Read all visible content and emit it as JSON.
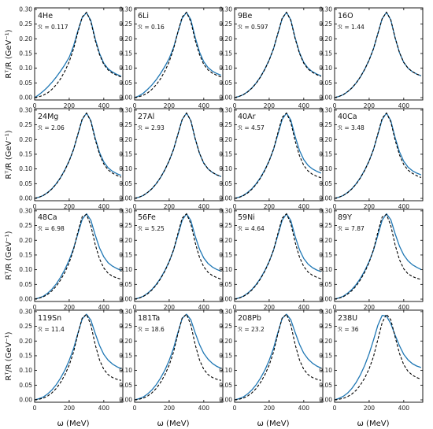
{
  "figure": {
    "xlabel": "ω (MeV)",
    "ylabel": "Rᵀ/R (GeV⁻¹)"
  },
  "chart_data": {
    "type": "line",
    "layout": "4x4 panels",
    "xlim": [
      0,
      510
    ],
    "ylim": [
      -0.008,
      0.305
    ],
    "xticks": [
      "0",
      "200",
      "400"
    ],
    "yticks": [
      "0.00",
      "0.05",
      "0.10",
      "0.15",
      "0.20",
      "0.25",
      "0.30"
    ],
    "xticks_values": [
      0,
      200,
      400
    ],
    "yticks_values": [
      0,
      0.05,
      0.1,
      0.15,
      0.2,
      0.25,
      0.3
    ],
    "colors": {
      "solid": "#1f77b4",
      "dashed": "#000000"
    },
    "x": [
      0,
      25,
      50,
      75,
      100,
      125,
      150,
      175,
      200,
      225,
      250,
      275,
      300,
      325,
      350,
      375,
      400,
      425,
      450,
      475,
      500
    ],
    "panels": [
      {
        "nucleus": "4He",
        "r_label": "ℛ = 0.117",
        "solid": [
          0.0,
          0.01,
          0.022,
          0.036,
          0.052,
          0.07,
          0.09,
          0.112,
          0.137,
          0.175,
          0.227,
          0.272,
          0.289,
          0.262,
          0.2,
          0.15,
          0.117,
          0.098,
          0.087,
          0.079,
          0.073
        ],
        "dashed": [
          0.0,
          0.003,
          0.008,
          0.016,
          0.028,
          0.044,
          0.064,
          0.09,
          0.122,
          0.165,
          0.222,
          0.274,
          0.29,
          0.258,
          0.195,
          0.146,
          0.113,
          0.094,
          0.083,
          0.076,
          0.07
        ]
      },
      {
        "nucleus": "6Li",
        "r_label": "ℛ = 0.16",
        "solid": [
          0.0,
          0.006,
          0.015,
          0.028,
          0.043,
          0.061,
          0.082,
          0.106,
          0.133,
          0.17,
          0.222,
          0.27,
          0.29,
          0.265,
          0.205,
          0.155,
          0.122,
          0.102,
          0.09,
          0.082,
          0.076
        ],
        "dashed": [
          0.0,
          0.003,
          0.008,
          0.016,
          0.028,
          0.044,
          0.064,
          0.09,
          0.122,
          0.165,
          0.222,
          0.274,
          0.29,
          0.258,
          0.195,
          0.146,
          0.113,
          0.094,
          0.083,
          0.076,
          0.07
        ]
      },
      {
        "nucleus": "9Be",
        "r_label": "ℛ = 0.597",
        "solid": [
          0.0,
          0.004,
          0.01,
          0.02,
          0.033,
          0.05,
          0.071,
          0.097,
          0.128,
          0.166,
          0.217,
          0.268,
          0.29,
          0.264,
          0.203,
          0.153,
          0.12,
          0.1,
          0.088,
          0.08,
          0.074
        ],
        "dashed": [
          0.0,
          0.004,
          0.01,
          0.019,
          0.032,
          0.049,
          0.07,
          0.096,
          0.127,
          0.166,
          0.218,
          0.27,
          0.29,
          0.262,
          0.2,
          0.15,
          0.117,
          0.097,
          0.086,
          0.078,
          0.072
        ]
      },
      {
        "nucleus": "16O",
        "r_label": "ℛ = 1.44",
        "solid": [
          0.0,
          0.004,
          0.01,
          0.02,
          0.033,
          0.05,
          0.071,
          0.097,
          0.128,
          0.166,
          0.217,
          0.268,
          0.29,
          0.264,
          0.203,
          0.153,
          0.12,
          0.1,
          0.088,
          0.08,
          0.074
        ],
        "dashed": [
          0.0,
          0.004,
          0.01,
          0.02,
          0.033,
          0.05,
          0.071,
          0.097,
          0.128,
          0.166,
          0.217,
          0.268,
          0.29,
          0.264,
          0.203,
          0.153,
          0.12,
          0.1,
          0.088,
          0.08,
          0.074
        ]
      },
      {
        "nucleus": "24Mg",
        "r_label": "ℛ = 2.06",
        "solid": [
          0.0,
          0.004,
          0.01,
          0.02,
          0.033,
          0.05,
          0.071,
          0.097,
          0.128,
          0.166,
          0.217,
          0.268,
          0.29,
          0.264,
          0.205,
          0.156,
          0.124,
          0.104,
          0.092,
          0.084,
          0.078
        ],
        "dashed": [
          0.0,
          0.004,
          0.01,
          0.019,
          0.032,
          0.049,
          0.07,
          0.096,
          0.127,
          0.166,
          0.218,
          0.27,
          0.29,
          0.262,
          0.2,
          0.15,
          0.117,
          0.097,
          0.086,
          0.078,
          0.072
        ]
      },
      {
        "nucleus": "27Al",
        "r_label": "ℛ = 2.93",
        "solid": [
          0.0,
          0.004,
          0.01,
          0.02,
          0.033,
          0.05,
          0.071,
          0.097,
          0.128,
          0.166,
          0.217,
          0.268,
          0.29,
          0.264,
          0.203,
          0.153,
          0.12,
          0.1,
          0.088,
          0.08,
          0.074
        ],
        "dashed": [
          0.0,
          0.004,
          0.01,
          0.02,
          0.033,
          0.05,
          0.071,
          0.097,
          0.128,
          0.166,
          0.217,
          0.268,
          0.29,
          0.264,
          0.203,
          0.153,
          0.12,
          0.1,
          0.088,
          0.08,
          0.074
        ]
      },
      {
        "nucleus": "40Ar",
        "r_label": "ℛ = 4.57",
        "solid": [
          0.0,
          0.004,
          0.01,
          0.02,
          0.033,
          0.05,
          0.071,
          0.097,
          0.128,
          0.166,
          0.217,
          0.268,
          0.29,
          0.266,
          0.21,
          0.163,
          0.132,
          0.112,
          0.1,
          0.092,
          0.086
        ],
        "dashed": [
          0.0,
          0.003,
          0.009,
          0.018,
          0.031,
          0.048,
          0.069,
          0.095,
          0.127,
          0.167,
          0.222,
          0.275,
          0.29,
          0.258,
          0.195,
          0.145,
          0.112,
          0.093,
          0.082,
          0.075,
          0.07
        ]
      },
      {
        "nucleus": "40Ca",
        "r_label": "ℛ = 3.48",
        "solid": [
          0.0,
          0.004,
          0.01,
          0.02,
          0.033,
          0.05,
          0.071,
          0.097,
          0.128,
          0.166,
          0.217,
          0.268,
          0.29,
          0.264,
          0.206,
          0.158,
          0.126,
          0.106,
          0.094,
          0.086,
          0.08
        ],
        "dashed": [
          0.0,
          0.004,
          0.01,
          0.019,
          0.032,
          0.049,
          0.07,
          0.096,
          0.127,
          0.166,
          0.219,
          0.272,
          0.29,
          0.26,
          0.198,
          0.148,
          0.115,
          0.096,
          0.085,
          0.077,
          0.071
        ]
      },
      {
        "nucleus": "48Ca",
        "r_label": "ℛ = 6.98",
        "solid": [
          0.0,
          0.004,
          0.01,
          0.02,
          0.034,
          0.052,
          0.074,
          0.101,
          0.133,
          0.172,
          0.222,
          0.271,
          0.29,
          0.268,
          0.218,
          0.174,
          0.144,
          0.124,
          0.112,
          0.104,
          0.098
        ],
        "dashed": [
          0.0,
          0.003,
          0.008,
          0.016,
          0.028,
          0.044,
          0.065,
          0.091,
          0.124,
          0.168,
          0.228,
          0.28,
          0.288,
          0.25,
          0.186,
          0.137,
          0.106,
          0.088,
          0.078,
          0.072,
          0.068
        ]
      },
      {
        "nucleus": "56Fe",
        "r_label": "ℛ = 5.25",
        "solid": [
          0.0,
          0.004,
          0.01,
          0.02,
          0.033,
          0.05,
          0.071,
          0.097,
          0.128,
          0.166,
          0.217,
          0.268,
          0.29,
          0.267,
          0.214,
          0.17,
          0.14,
          0.121,
          0.109,
          0.101,
          0.095
        ],
        "dashed": [
          0.0,
          0.003,
          0.009,
          0.018,
          0.031,
          0.048,
          0.069,
          0.095,
          0.127,
          0.167,
          0.222,
          0.275,
          0.29,
          0.256,
          0.192,
          0.142,
          0.11,
          0.091,
          0.08,
          0.073,
          0.068
        ]
      },
      {
        "nucleus": "59Ni",
        "r_label": "ℛ = 4.64",
        "solid": [
          0.0,
          0.004,
          0.01,
          0.02,
          0.033,
          0.05,
          0.071,
          0.097,
          0.128,
          0.166,
          0.217,
          0.268,
          0.29,
          0.267,
          0.213,
          0.168,
          0.138,
          0.119,
          0.107,
          0.099,
          0.093
        ],
        "dashed": [
          0.0,
          0.003,
          0.009,
          0.018,
          0.031,
          0.048,
          0.069,
          0.095,
          0.127,
          0.167,
          0.222,
          0.275,
          0.29,
          0.257,
          0.193,
          0.143,
          0.111,
          0.092,
          0.081,
          0.074,
          0.069
        ]
      },
      {
        "nucleus": "89Y",
        "r_label": "ℛ = 7.87",
        "solid": [
          0.0,
          0.004,
          0.01,
          0.02,
          0.033,
          0.05,
          0.071,
          0.097,
          0.128,
          0.166,
          0.217,
          0.268,
          0.29,
          0.27,
          0.222,
          0.18,
          0.15,
          0.13,
          0.117,
          0.108,
          0.101
        ],
        "dashed": [
          0.0,
          0.003,
          0.008,
          0.017,
          0.029,
          0.045,
          0.066,
          0.092,
          0.125,
          0.168,
          0.227,
          0.279,
          0.288,
          0.25,
          0.184,
          0.134,
          0.103,
          0.086,
          0.077,
          0.071,
          0.067
        ]
      },
      {
        "nucleus": "119Sn",
        "r_label": "ℛ = 11.4",
        "solid": [
          0.0,
          0.004,
          0.01,
          0.02,
          0.034,
          0.052,
          0.074,
          0.101,
          0.134,
          0.174,
          0.226,
          0.275,
          0.291,
          0.271,
          0.226,
          0.185,
          0.155,
          0.135,
          0.122,
          0.113,
          0.106
        ],
        "dashed": [
          0.0,
          0.002,
          0.006,
          0.013,
          0.024,
          0.039,
          0.059,
          0.085,
          0.118,
          0.162,
          0.224,
          0.278,
          0.291,
          0.255,
          0.188,
          0.136,
          0.104,
          0.086,
          0.076,
          0.07,
          0.066
        ]
      },
      {
        "nucleus": "181Ta",
        "r_label": "ℛ = 18.6",
        "solid": [
          0.0,
          0.004,
          0.01,
          0.02,
          0.034,
          0.052,
          0.074,
          0.101,
          0.134,
          0.175,
          0.228,
          0.277,
          0.291,
          0.272,
          0.228,
          0.188,
          0.158,
          0.138,
          0.124,
          0.114,
          0.107
        ],
        "dashed": [
          0.0,
          0.002,
          0.006,
          0.013,
          0.024,
          0.039,
          0.059,
          0.085,
          0.118,
          0.162,
          0.224,
          0.278,
          0.291,
          0.255,
          0.188,
          0.136,
          0.104,
          0.086,
          0.076,
          0.07,
          0.066
        ]
      },
      {
        "nucleus": "208Pb",
        "r_label": "ℛ = 23.2",
        "solid": [
          0.0,
          0.004,
          0.01,
          0.02,
          0.034,
          0.052,
          0.074,
          0.101,
          0.134,
          0.175,
          0.228,
          0.277,
          0.291,
          0.272,
          0.229,
          0.189,
          0.159,
          0.139,
          0.125,
          0.115,
          0.108
        ],
        "dashed": [
          0.0,
          0.002,
          0.006,
          0.013,
          0.024,
          0.039,
          0.059,
          0.085,
          0.118,
          0.162,
          0.224,
          0.278,
          0.291,
          0.255,
          0.188,
          0.136,
          0.104,
          0.086,
          0.076,
          0.07,
          0.066
        ]
      },
      {
        "nucleus": "238U",
        "r_label": "ℛ = 36",
        "solid": [
          0.0,
          0.005,
          0.012,
          0.023,
          0.039,
          0.06,
          0.086,
          0.118,
          0.157,
          0.203,
          0.253,
          0.287,
          0.285,
          0.259,
          0.22,
          0.184,
          0.155,
          0.136,
          0.123,
          0.115,
          0.11
        ],
        "dashed": [
          0.0,
          0.002,
          0.005,
          0.011,
          0.02,
          0.033,
          0.051,
          0.075,
          0.106,
          0.147,
          0.205,
          0.262,
          0.291,
          0.272,
          0.214,
          0.158,
          0.12,
          0.097,
          0.084,
          0.076,
          0.07
        ]
      }
    ]
  }
}
